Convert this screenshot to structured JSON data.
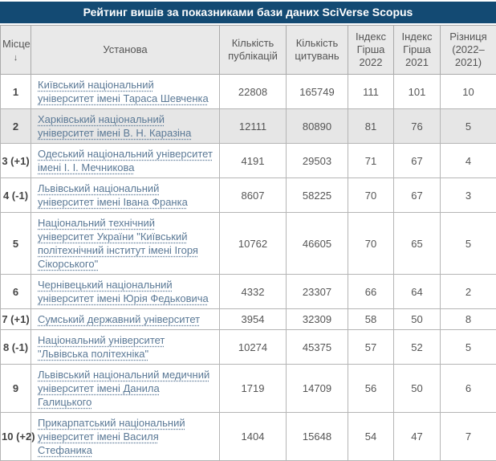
{
  "title": "Рейтинг вишів за показниками бази даних SciVerse Scopus",
  "colors": {
    "title_bar": "#134a73",
    "title_text": "#ffffff",
    "header_bg": "#e9e9e9",
    "stripe_bg": "#e6e6e6",
    "border": "#b5b5b5",
    "link": "#5b7996"
  },
  "table": {
    "columns": [
      {
        "label": "Місце",
        "sort_indicator": "↓"
      },
      {
        "label": "Установа"
      },
      {
        "label": "Кількість публікацій"
      },
      {
        "label": "Кількість цитувань"
      },
      {
        "label": "Індекс Гірша 2022"
      },
      {
        "label": "Індекс Гірша 2021"
      },
      {
        "label": "Різниця (2022– 2021)"
      }
    ],
    "rows": [
      {
        "place": "1",
        "institution": "Київський національний університет імені Тараса Шевченка",
        "publications": "22808",
        "citations": "165749",
        "hirsch_2022": "111",
        "hirsch_2021": "101",
        "difference": "10"
      },
      {
        "place": "2",
        "institution": "Харківський національний університет імені В. Н. Каразіна",
        "publications": "12111",
        "citations": "80890",
        "hirsch_2022": "81",
        "hirsch_2021": "76",
        "difference": "5"
      },
      {
        "place": "3 (+1)",
        "institution": "Одеський національний університет імені І. І. Мечникова",
        "publications": "4191",
        "citations": "29503",
        "hirsch_2022": "71",
        "hirsch_2021": "67",
        "difference": "4"
      },
      {
        "place": "4 (-1)",
        "institution": "Львівський національний університет імені Івана Франка",
        "publications": "8607",
        "citations": "58225",
        "hirsch_2022": "70",
        "hirsch_2021": "67",
        "difference": "3"
      },
      {
        "place": "5",
        "institution": "Національний технічний університет України \"Київський політехнічний інститут імені Ігоря Сікорського\"",
        "publications": "10762",
        "citations": "46605",
        "hirsch_2022": "70",
        "hirsch_2021": "65",
        "difference": "5"
      },
      {
        "place": "6",
        "institution": "Чернівецький національний університет імені Юрія Федьковича",
        "publications": "4332",
        "citations": "23307",
        "hirsch_2022": "66",
        "hirsch_2021": "64",
        "difference": "2"
      },
      {
        "place": "7 (+1)",
        "institution": "Сумський державний університет",
        "publications": "3954",
        "citations": "32309",
        "hirsch_2022": "58",
        "hirsch_2021": "50",
        "difference": "8"
      },
      {
        "place": "8 (-1)",
        "institution": "Національний університет \"Львівська політехніка\"",
        "publications": "10274",
        "citations": "45375",
        "hirsch_2022": "57",
        "hirsch_2021": "52",
        "difference": "5"
      },
      {
        "place": "9",
        "institution": "Львівський національний медичний університет імені Данила Галицького",
        "publications": "1719",
        "citations": "14709",
        "hirsch_2022": "56",
        "hirsch_2021": "50",
        "difference": "6"
      },
      {
        "place": "10 (+2)",
        "institution": "Прикарпатський національний університет імені Василя Стефаника",
        "publications": "1404",
        "citations": "15648",
        "hirsch_2022": "54",
        "hirsch_2021": "47",
        "difference": "7"
      }
    ]
  }
}
